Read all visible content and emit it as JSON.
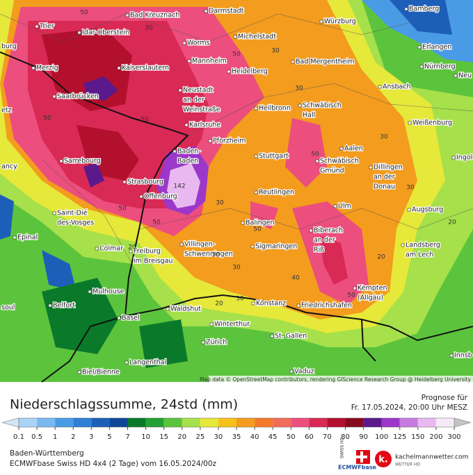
{
  "map": {
    "cities": [
      {
        "lines": [
          "Bamberg"
        ]
      },
      {
        "lines": [
          "Bad Kreuznach"
        ]
      },
      {
        "lines": [
          "Darmstadt"
        ]
      },
      {
        "lines": [
          "Trier"
        ]
      },
      {
        "lines": [
          "Idar-Oberstein"
        ]
      },
      {
        "lines": [
          "Würzburg"
        ]
      },
      {
        "lines": [
          "Michelstadt"
        ]
      },
      {
        "lines": [
          "burg"
        ]
      },
      {
        "lines": [
          "Erlangen"
        ]
      },
      {
        "lines": [
          "Worms"
        ]
      },
      {
        "lines": [
          "Mannheim"
        ]
      },
      {
        "lines": [
          "Heidelberg"
        ]
      },
      {
        "lines": [
          "Bad Mergentheim"
        ]
      },
      {
        "lines": [
          "Nürnberg"
        ]
      },
      {
        "lines": [
          "Neu"
        ]
      },
      {
        "lines": [
          "Merzig"
        ]
      },
      {
        "lines": [
          "Kaiserslautern"
        ]
      },
      {
        "lines": [
          "Ansbach"
        ]
      },
      {
        "lines": [
          "Saarbrücken"
        ]
      },
      {
        "lines": [
          "Neustadt",
          "an der",
          "Weinstraße"
        ]
      },
      {
        "lines": [
          "etz"
        ]
      },
      {
        "lines": [
          "Heilbronn"
        ]
      },
      {
        "lines": [
          "Schwäbisch",
          "Hall"
        ]
      },
      {
        "lines": [
          "Karlsruhe"
        ]
      },
      {
        "lines": [
          "Weißenburg"
        ]
      },
      {
        "lines": [
          "Pforzheim"
        ]
      },
      {
        "lines": [
          "Baden-",
          "Baden"
        ]
      },
      {
        "lines": [
          "Stuttgart"
        ]
      },
      {
        "lines": [
          "Aalen"
        ]
      },
      {
        "lines": [
          "Schwäbisch",
          "Gmünd"
        ]
      },
      {
        "lines": [
          "Sarrebourg"
        ]
      },
      {
        "lines": [
          "Ingol"
        ]
      },
      {
        "lines": [
          "ancy"
        ]
      },
      {
        "lines": [
          "Dillingen",
          "an der",
          "Donau"
        ]
      },
      {
        "lines": [
          "Strasbourg"
        ]
      },
      {
        "lines": [
          "Offenburg"
        ]
      },
      {
        "lines": [
          "Reutlingen"
        ]
      },
      {
        "lines": [
          "Ulm"
        ]
      },
      {
        "lines": [
          "Augsburg"
        ]
      },
      {
        "lines": [
          "Saint-Dié",
          "des-Vosges"
        ]
      },
      {
        "lines": [
          "Balingen"
        ]
      },
      {
        "lines": [
          "Biberach",
          "an der",
          "Riß"
        ]
      },
      {
        "lines": [
          "Epinal"
        ]
      },
      {
        "lines": [
          "Colmar"
        ]
      },
      {
        "lines": [
          "Villingen-",
          "Schwenningen"
        ]
      },
      {
        "lines": [
          "Sigmaringen"
        ]
      },
      {
        "lines": [
          "Landsberg",
          "am Lech"
        ]
      },
      {
        "lines": [
          "Freiburg",
          "im Breisgau"
        ]
      },
      {
        "lines": [
          "Mulhouse"
        ]
      },
      {
        "lines": [
          "Kempten",
          "(Allgäu)"
        ]
      },
      {
        "lines": [
          "Belfort"
        ]
      },
      {
        "lines": [
          "Konstanz"
        ]
      },
      {
        "lines": [
          "Friedrichshafen"
        ]
      },
      {
        "lines": [
          "Waldshut"
        ]
      },
      {
        "lines": [
          "soul"
        ]
      },
      {
        "lines": [
          "Basel"
        ]
      },
      {
        "lines": [
          "Winterthur"
        ]
      },
      {
        "lines": [
          "St. Gallen"
        ]
      },
      {
        "lines": [
          "Zürich"
        ]
      },
      {
        "lines": [
          "Langenthal"
        ]
      },
      {
        "lines": [
          "Innsb"
        ]
      },
      {
        "lines": [
          "Biel/Bienne"
        ]
      },
      {
        "lines": [
          "Vaduz"
        ]
      }
    ],
    "contour_labels": [
      "50",
      "30",
      "50",
      "30",
      "30",
      "50",
      "50",
      "50",
      "142",
      "50",
      "30",
      "50",
      "30",
      "50",
      "20",
      "30",
      "20",
      "40",
      "30",
      "20",
      "50",
      "30",
      "30",
      "20"
    ],
    "attribution": "Map data © OpenStreetMap contributors, rendering GIScience Research Group @ Heidelberg University"
  },
  "header": {
    "title": "Niederschlagssumme, 24std (mm)",
    "forecast_label": "Prognose für",
    "forecast_time": "Fr. 17.05.2024, 20:00 Uhr MESZ"
  },
  "colorbar": {
    "ticks": [
      0.1,
      0.5,
      1,
      2,
      3,
      5,
      7,
      10,
      15,
      20,
      25,
      30,
      35,
      40,
      45,
      50,
      60,
      70,
      80,
      90,
      100,
      125,
      150,
      200,
      300
    ],
    "colors": [
      "#aad4f5",
      "#78b9ef",
      "#4a9be6",
      "#2f7fd6",
      "#1d5fb8",
      "#0f4696",
      "#0a7a2a",
      "#23a033",
      "#5cc43c",
      "#a6e04a",
      "#e6e83a",
      "#f5c21b",
      "#f39c1e",
      "#f47a2c",
      "#f26b5b",
      "#ec4e7d",
      "#d92955",
      "#b3102d",
      "#860a1e",
      "#5b1a8c",
      "#9b38c9",
      "#c77be0",
      "#e8b9f0",
      "#f4eaf6"
    ],
    "under_color": "#d2e6f7",
    "over_color": "#c4c4c4"
  },
  "footer": {
    "region": "Baden-Württemberg",
    "model": "ECMWFbase Swiss HD 4x4 (2 Tage) vom 16.05.2024/00z",
    "logo_swiss": "SWISS HD",
    "logo_ecmwf": "ECMWFbase",
    "logo_letter": "k.",
    "site": "kachelmannwetter.com",
    "site_sub": "WETTER HD"
  }
}
